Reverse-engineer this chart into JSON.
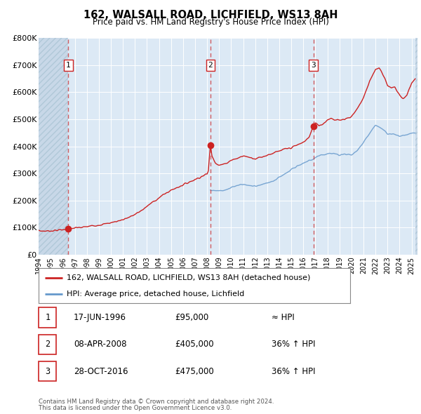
{
  "title": "162, WALSALL ROAD, LICHFIELD, WS13 8AH",
  "subtitle": "Price paid vs. HM Land Registry's House Price Index (HPI)",
  "hpi_label": "HPI: Average price, detached house, Lichfield",
  "price_label": "162, WALSALL ROAD, LICHFIELD, WS13 8AH (detached house)",
  "footer1": "Contains HM Land Registry data © Crown copyright and database right 2024.",
  "footer2": "This data is licensed under the Open Government Licence v3.0.",
  "ylim": [
    0,
    800000
  ],
  "yticks": [
    0,
    100000,
    200000,
    300000,
    400000,
    500000,
    600000,
    700000,
    800000
  ],
  "ytick_labels": [
    "£0",
    "£100K",
    "£200K",
    "£300K",
    "£400K",
    "£500K",
    "£600K",
    "£700K",
    "£800K"
  ],
  "background_color": "#dce9f5",
  "plot_bg_color": "#dce9f5",
  "fig_bg_color": "#ffffff",
  "hpi_color": "#6699cc",
  "price_color": "#cc2222",
  "marker_color": "#cc2222",
  "hatch_color": "#c8d8e8",
  "sale_events": [
    {
      "num": 1,
      "date_label": "17-JUN-1996",
      "price": 95000,
      "price_label": "£95,000",
      "hpi_note": "≈ HPI",
      "x": 1996.46
    },
    {
      "num": 2,
      "date_label": "08-APR-2008",
      "price": 405000,
      "price_label": "£405,000",
      "hpi_note": "36% ↑ HPI",
      "x": 2008.27
    },
    {
      "num": 3,
      "date_label": "28-OCT-2016",
      "price": 475000,
      "price_label": "£475,000",
      "hpi_note": "36% ↑ HPI",
      "x": 2016.83
    }
  ],
  "xmin": 1994.0,
  "xmax": 2025.5,
  "xticks": [
    1994,
    1995,
    1996,
    1997,
    1998,
    1999,
    2000,
    2001,
    2002,
    2003,
    2004,
    2005,
    2006,
    2007,
    2008,
    2009,
    2010,
    2011,
    2012,
    2013,
    2014,
    2015,
    2016,
    2017,
    2018,
    2019,
    2020,
    2021,
    2022,
    2023,
    2024,
    2025
  ],
  "price_anchors": [
    [
      1994.0,
      88000
    ],
    [
      1994.5,
      87000
    ],
    [
      1995.0,
      88000
    ],
    [
      1995.5,
      90000
    ],
    [
      1996.0,
      92000
    ],
    [
      1996.46,
      95000
    ],
    [
      1997.0,
      98000
    ],
    [
      1997.5,
      100000
    ],
    [
      1998.0,
      103000
    ],
    [
      1998.5,
      107000
    ],
    [
      1999.0,
      110000
    ],
    [
      1999.5,
      113000
    ],
    [
      2000.0,
      118000
    ],
    [
      2000.5,
      123000
    ],
    [
      2001.0,
      130000
    ],
    [
      2001.5,
      138000
    ],
    [
      2002.0,
      148000
    ],
    [
      2002.5,
      162000
    ],
    [
      2003.0,
      178000
    ],
    [
      2003.5,
      195000
    ],
    [
      2004.0,
      210000
    ],
    [
      2004.5,
      225000
    ],
    [
      2005.0,
      238000
    ],
    [
      2005.5,
      248000
    ],
    [
      2006.0,
      258000
    ],
    [
      2006.5,
      268000
    ],
    [
      2007.0,
      278000
    ],
    [
      2007.5,
      288000
    ],
    [
      2008.0,
      298000
    ],
    [
      2008.1,
      310000
    ],
    [
      2008.27,
      405000
    ],
    [
      2008.4,
      365000
    ],
    [
      2008.7,
      340000
    ],
    [
      2009.0,
      330000
    ],
    [
      2009.5,
      335000
    ],
    [
      2010.0,
      350000
    ],
    [
      2010.5,
      355000
    ],
    [
      2011.0,
      365000
    ],
    [
      2011.5,
      360000
    ],
    [
      2012.0,
      355000
    ],
    [
      2012.5,
      360000
    ],
    [
      2013.0,
      368000
    ],
    [
      2013.5,
      375000
    ],
    [
      2014.0,
      382000
    ],
    [
      2014.5,
      390000
    ],
    [
      2015.0,
      395000
    ],
    [
      2015.5,
      405000
    ],
    [
      2016.0,
      415000
    ],
    [
      2016.5,
      435000
    ],
    [
      2016.83,
      475000
    ],
    [
      2017.0,
      488000
    ],
    [
      2017.3,
      478000
    ],
    [
      2017.6,
      482000
    ],
    [
      2018.0,
      498000
    ],
    [
      2018.3,
      505000
    ],
    [
      2018.6,
      495000
    ],
    [
      2019.0,
      498000
    ],
    [
      2019.5,
      502000
    ],
    [
      2020.0,
      510000
    ],
    [
      2020.5,
      540000
    ],
    [
      2021.0,
      580000
    ],
    [
      2021.5,
      640000
    ],
    [
      2022.0,
      685000
    ],
    [
      2022.3,
      690000
    ],
    [
      2022.5,
      675000
    ],
    [
      2022.8,
      650000
    ],
    [
      2023.0,
      625000
    ],
    [
      2023.3,
      615000
    ],
    [
      2023.6,
      618000
    ],
    [
      2024.0,
      588000
    ],
    [
      2024.3,
      578000
    ],
    [
      2024.6,
      588000
    ],
    [
      2025.0,
      635000
    ],
    [
      2025.3,
      648000
    ]
  ],
  "hpi_anchors": [
    [
      2008.27,
      238000
    ],
    [
      2008.5,
      238000
    ],
    [
      2009.0,
      235000
    ],
    [
      2009.5,
      238000
    ],
    [
      2010.0,
      248000
    ],
    [
      2010.5,
      255000
    ],
    [
      2011.0,
      260000
    ],
    [
      2011.5,
      255000
    ],
    [
      2012.0,
      252000
    ],
    [
      2012.5,
      258000
    ],
    [
      2013.0,
      265000
    ],
    [
      2013.5,
      272000
    ],
    [
      2014.0,
      285000
    ],
    [
      2014.5,
      300000
    ],
    [
      2015.0,
      315000
    ],
    [
      2015.5,
      328000
    ],
    [
      2016.0,
      338000
    ],
    [
      2016.5,
      348000
    ],
    [
      2016.83,
      352000
    ],
    [
      2017.0,
      358000
    ],
    [
      2017.5,
      368000
    ],
    [
      2018.0,
      372000
    ],
    [
      2018.5,
      375000
    ],
    [
      2019.0,
      368000
    ],
    [
      2019.5,
      372000
    ],
    [
      2020.0,
      368000
    ],
    [
      2020.5,
      385000
    ],
    [
      2021.0,
      415000
    ],
    [
      2021.5,
      448000
    ],
    [
      2022.0,
      478000
    ],
    [
      2022.5,
      468000
    ],
    [
      2023.0,
      448000
    ],
    [
      2023.5,
      445000
    ],
    [
      2024.0,
      438000
    ],
    [
      2024.5,
      442000
    ],
    [
      2025.0,
      448000
    ],
    [
      2025.3,
      450000
    ]
  ]
}
